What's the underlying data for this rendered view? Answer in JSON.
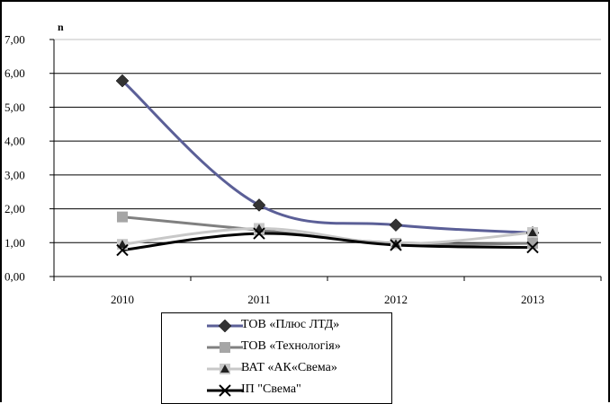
{
  "chart_data": {
    "type": "line",
    "y_unit_label": "n",
    "ylim": [
      0,
      7
    ],
    "y_ticks": [
      "0,00",
      "1,00",
      "2,00",
      "3,00",
      "4,00",
      "5,00",
      "6,00",
      "7,00"
    ],
    "categories": [
      "2010",
      "2011",
      "2012",
      "2013"
    ],
    "grid": true,
    "legend_position": "bottom",
    "series": [
      {
        "name": "ТОВ «Плюс ЛТД»",
        "values": [
          5.78,
          2.11,
          1.52,
          1.29
        ],
        "color": "#5b5f97",
        "marker": "diamond",
        "marker_color": "#333333"
      },
      {
        "name": "ТОВ «Технологія»",
        "values": [
          1.76,
          1.37,
          0.98,
          0.98
        ],
        "color": "#808080",
        "marker": "square",
        "marker_color": "#a6a6a6"
      },
      {
        "name": "ВАТ «АК«Свема»",
        "values": [
          0.95,
          1.42,
          0.97,
          1.3
        ],
        "color": "#c8c8c8",
        "marker": "triangle",
        "marker_color": "#222222"
      },
      {
        "name": "ІП \"Свема\"",
        "values": [
          0.78,
          1.27,
          0.93,
          0.86
        ],
        "color": "#000000",
        "marker": "x",
        "marker_color": "#000000"
      }
    ]
  }
}
